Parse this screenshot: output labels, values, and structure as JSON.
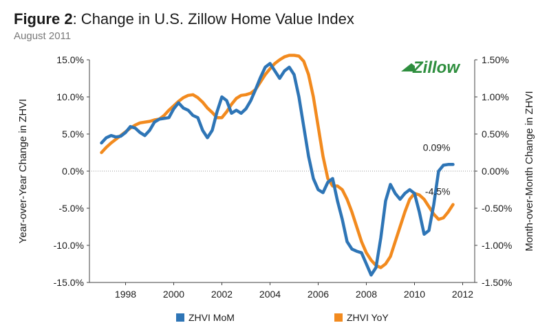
{
  "figure": {
    "label": "Figure 2",
    "title_rest": ": Change in U.S. Zillow Home Value Index",
    "subtitle": "August 2011",
    "logo_text": "Zillow"
  },
  "colors": {
    "mom": "#2e75b6",
    "yoy": "#f28a1e",
    "axis": "#404040",
    "zero_line": "#9a9a9a",
    "logo": "#2e8e3e"
  },
  "chart_data": {
    "type": "line",
    "title": "Change in U.S. Zillow Home Value Index",
    "subtitle": "August 2011",
    "xlabel": "",
    "ylabel_left": "Year-over-Year Change in ZHVI",
    "ylabel_right": "Month-over-Month Change in ZHVI",
    "xlim": [
      1996.5,
      2012.5
    ],
    "ylim_left": [
      -15,
      15
    ],
    "ylim_right": [
      -1.5,
      1.5
    ],
    "x_ticks": [
      1998,
      2000,
      2002,
      2004,
      2006,
      2008,
      2010,
      2012
    ],
    "y_ticks_left": [
      "15.0%",
      "10.0%",
      "5.0%",
      "0.0%",
      "-5.0%",
      "-10.0%",
      "-15.0%"
    ],
    "y_ticks_right": [
      "1.50%",
      "1.00%",
      "0.50%",
      "0.00%",
      "-0.50%",
      "-1.00%",
      "-1.50%"
    ],
    "series": [
      {
        "name": "ZHVI MoM",
        "axis": "right",
        "x": [
          1997.0,
          1997.2,
          1997.4,
          1997.6,
          1997.8,
          1998.0,
          1998.2,
          1998.4,
          1998.6,
          1998.8,
          1999.0,
          1999.2,
          1999.4,
          1999.6,
          1999.8,
          2000.0,
          2000.2,
          2000.4,
          2000.6,
          2000.8,
          2001.0,
          2001.2,
          2001.4,
          2001.6,
          2001.8,
          2002.0,
          2002.2,
          2002.4,
          2002.6,
          2002.8,
          2003.0,
          2003.2,
          2003.4,
          2003.6,
          2003.8,
          2004.0,
          2004.2,
          2004.4,
          2004.6,
          2004.8,
          2005.0,
          2005.2,
          2005.4,
          2005.6,
          2005.8,
          2006.0,
          2006.2,
          2006.4,
          2006.6,
          2006.8,
          2007.0,
          2007.2,
          2007.4,
          2007.6,
          2007.8,
          2008.0,
          2008.2,
          2008.4,
          2008.6,
          2008.8,
          2009.0,
          2009.2,
          2009.4,
          2009.6,
          2009.8,
          2010.0,
          2010.2,
          2010.4,
          2010.6,
          2010.8,
          2011.0,
          2011.2,
          2011.4,
          2011.6
        ],
        "values": [
          0.38,
          0.45,
          0.48,
          0.46,
          0.47,
          0.52,
          0.6,
          0.58,
          0.52,
          0.48,
          0.55,
          0.66,
          0.7,
          0.71,
          0.72,
          0.84,
          0.92,
          0.85,
          0.82,
          0.75,
          0.72,
          0.55,
          0.45,
          0.55,
          0.8,
          1.0,
          0.95,
          0.78,
          0.82,
          0.78,
          0.84,
          0.95,
          1.1,
          1.26,
          1.4,
          1.45,
          1.35,
          1.25,
          1.35,
          1.4,
          1.3,
          1.0,
          0.6,
          0.2,
          -0.1,
          -0.25,
          -0.29,
          -0.15,
          -0.1,
          -0.4,
          -0.65,
          -0.95,
          -1.05,
          -1.08,
          -1.1,
          -1.25,
          -1.4,
          -1.3,
          -0.9,
          -0.4,
          -0.18,
          -0.3,
          -0.38,
          -0.3,
          -0.25,
          -0.3,
          -0.55,
          -0.85,
          -0.8,
          -0.45,
          0.0,
          0.08,
          0.09,
          0.09
        ]
      },
      {
        "name": "ZHVI YoY",
        "axis": "left",
        "x": [
          1997.0,
          1997.2,
          1997.4,
          1997.6,
          1997.8,
          1998.0,
          1998.2,
          1998.4,
          1998.6,
          1998.8,
          1999.0,
          1999.2,
          1999.4,
          1999.6,
          1999.8,
          2000.0,
          2000.2,
          2000.4,
          2000.6,
          2000.8,
          2001.0,
          2001.2,
          2001.4,
          2001.6,
          2001.8,
          2002.0,
          2002.2,
          2002.4,
          2002.6,
          2002.8,
          2003.0,
          2003.2,
          2003.4,
          2003.6,
          2003.8,
          2004.0,
          2004.2,
          2004.4,
          2004.6,
          2004.8,
          2005.0,
          2005.2,
          2005.4,
          2005.6,
          2005.8,
          2006.0,
          2006.2,
          2006.4,
          2006.6,
          2006.8,
          2007.0,
          2007.2,
          2007.4,
          2007.6,
          2007.8,
          2008.0,
          2008.2,
          2008.4,
          2008.6,
          2008.8,
          2009.0,
          2009.2,
          2009.4,
          2009.6,
          2009.8,
          2010.0,
          2010.2,
          2010.4,
          2010.6,
          2010.8,
          2011.0,
          2011.2,
          2011.4,
          2011.6
        ],
        "values": [
          2.5,
          3.2,
          3.8,
          4.3,
          4.8,
          5.3,
          5.8,
          6.2,
          6.5,
          6.6,
          6.7,
          6.9,
          7.0,
          7.5,
          8.2,
          8.8,
          9.4,
          9.9,
          10.2,
          10.3,
          9.9,
          9.3,
          8.5,
          7.9,
          7.2,
          7.2,
          8.0,
          9.0,
          9.8,
          10.2,
          10.3,
          10.5,
          11.0,
          12.0,
          13.0,
          13.8,
          14.5,
          15.0,
          15.4,
          15.6,
          15.6,
          15.5,
          14.8,
          13.0,
          10.0,
          6.0,
          2.0,
          -1.0,
          -2.0,
          -2.0,
          -2.5,
          -3.8,
          -5.5,
          -7.5,
          -9.5,
          -11.0,
          -12.0,
          -12.7,
          -13.0,
          -12.5,
          -11.5,
          -9.5,
          -7.5,
          -5.5,
          -3.8,
          -3.0,
          -3.2,
          -3.8,
          -4.8,
          -5.8,
          -6.5,
          -6.3,
          -5.5,
          -4.5
        ]
      }
    ],
    "annotations": [
      {
        "text": "0.09%",
        "series": "ZHVI MoM"
      },
      {
        "text": "-4.5%",
        "series": "ZHVI YoY"
      }
    ],
    "legend": [
      "ZHVI MoM",
      "ZHVI YoY"
    ],
    "legend_position": "bottom"
  }
}
